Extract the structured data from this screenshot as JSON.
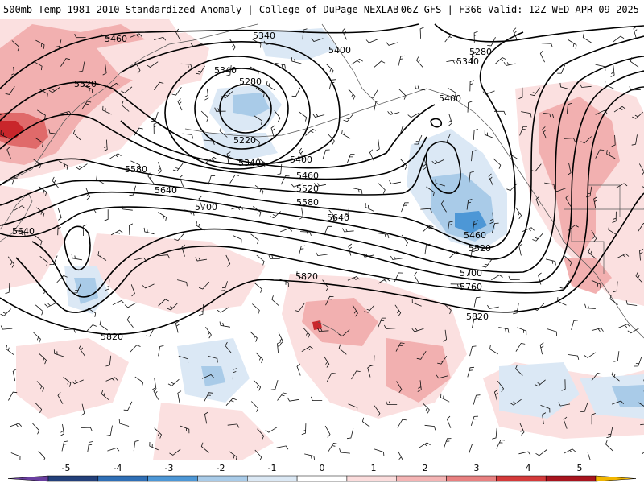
{
  "header": {
    "title": "500mb Temp 1981-2010 Standardized Anomaly | College of DuPage NEXLAB",
    "run_info": "06Z GFS | F366 Valid: 12Z WED APR 09 2025"
  },
  "contour_labels": [
    "5460",
    "5340",
    "5400",
    "5340",
    "5280",
    "5280",
    "5340",
    "5520",
    "5220",
    "5400",
    "5340",
    "5400",
    "5460",
    "5580",
    "5520",
    "5640",
    "5580",
    "5700",
    "5640",
    "5460",
    "5520",
    "5640",
    "5820",
    "5700",
    "5760",
    "5820",
    "5820"
  ],
  "colorbar": {
    "tick_labels": [
      "-5",
      "-4",
      "-3",
      "-2",
      "-1",
      "0",
      "1",
      "2",
      "3",
      "4",
      "5"
    ],
    "colors": [
      "#6a3fa0",
      "#23407a",
      "#2f6fb6",
      "#4d97d6",
      "#a9cbe8",
      "#dbe8f4",
      "#ffffff",
      "#fbdcdc",
      "#f4b4b4",
      "#e88080",
      "#d43a3a",
      "#a8141e",
      "#f2b600"
    ]
  },
  "colors": {
    "cold_light": "#dbe8f5",
    "cold_mid": "#a9cbe8",
    "cold_strong": "#4d97d6",
    "warm_light": "#fbe0e0",
    "warm_mid": "#f2b0b0",
    "warm_strong": "#e06a6a",
    "warm_max": "#c9262b"
  },
  "icons": [
    "wind-barb-icon"
  ]
}
